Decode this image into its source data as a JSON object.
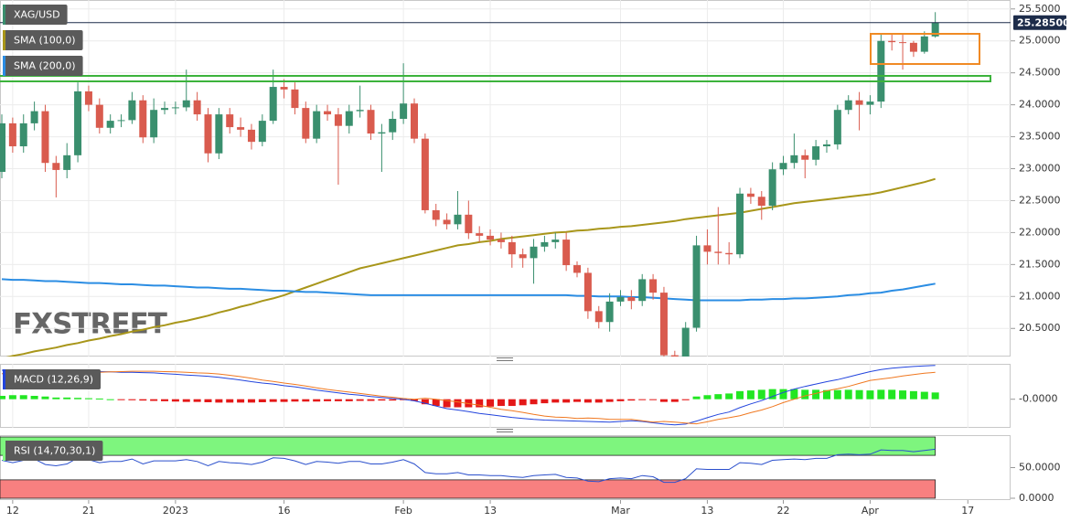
{
  "chart_data": [
    {
      "type": "candlestick",
      "title": "XAG/USD",
      "watermark": "FXSTREET",
      "categories": [
        null,
        "12",
        null,
        null,
        null,
        null,
        null,
        null,
        "21",
        null,
        null,
        null,
        null,
        null,
        null,
        null,
        "2023",
        null,
        null,
        null,
        null,
        null,
        null,
        null,
        null,
        null,
        "16",
        null,
        null,
        null,
        null,
        null,
        null,
        null,
        null,
        null,
        null,
        "Feb",
        null,
        null,
        null,
        null,
        null,
        null,
        null,
        "13",
        null,
        null,
        null,
        null,
        null,
        null,
        null,
        null,
        null,
        null,
        null,
        "Mar",
        null,
        null,
        null,
        null,
        null,
        null,
        null,
        "13",
        null,
        null,
        null,
        null,
        null,
        null,
        "22",
        null,
        null,
        null,
        null,
        null,
        null,
        null,
        "Apr",
        null,
        null,
        null,
        null,
        null,
        null,
        null,
        null,
        "17",
        null,
        null
      ],
      "open": [
        22.95,
        23.71,
        23.35,
        23.71,
        23.9,
        23.09,
        22.98,
        23.21,
        24.21,
        24.0,
        23.64,
        23.75,
        23.76,
        24.07,
        23.49,
        23.92,
        23.95,
        23.96,
        24.07,
        23.85,
        23.24,
        23.85,
        23.65,
        23.61,
        23.42,
        23.75,
        24.28,
        24.24,
        23.95,
        23.47,
        23.9,
        23.85,
        23.67,
        23.9,
        23.92,
        23.55,
        23.57,
        23.78,
        24.02,
        23.47,
        22.35,
        22.2,
        22.13,
        22.28,
        21.99,
        21.95,
        21.89,
        21.85,
        21.66,
        21.6,
        21.78,
        21.85,
        21.89,
        21.49,
        21.37,
        20.77,
        20.6,
        20.92,
        20.99,
        20.93,
        21.27,
        21.06,
        20.08,
        20.06,
        20.51,
        21.8,
        21.7,
        21.68,
        21.66,
        22.61,
        22.56,
        22.42,
        22.99,
        23.09,
        23.21,
        23.14,
        23.35,
        23.38,
        23.92,
        24.07,
        24.0,
        24.05,
        25.0,
        24.98,
        24.97,
        24.83,
        25.07,
        null,
        null,
        null,
        null,
        null
      ],
      "high": [
        23.85,
        23.8,
        23.85,
        24.05,
        24.0,
        23.2,
        23.4,
        24.35,
        24.3,
        24.1,
        23.85,
        23.85,
        24.2,
        24.15,
        24.1,
        24.05,
        24.05,
        24.55,
        24.2,
        23.95,
        23.95,
        23.95,
        23.8,
        23.7,
        23.85,
        24.55,
        24.4,
        24.35,
        24.05,
        24.0,
        24.0,
        23.95,
        24.0,
        24.3,
        24.0,
        23.7,
        23.9,
        24.65,
        24.1,
        23.55,
        22.45,
        22.3,
        22.65,
        22.5,
        22.1,
        22.05,
        22.0,
        21.95,
        21.75,
        21.9,
        21.95,
        22.0,
        22.0,
        21.55,
        21.45,
        20.85,
        21.05,
        21.1,
        21.1,
        21.35,
        21.35,
        21.15,
        20.15,
        20.6,
        21.95,
        22.05,
        22.4,
        21.85,
        22.7,
        22.7,
        22.65,
        23.1,
        23.2,
        23.55,
        23.3,
        23.45,
        23.45,
        24.0,
        24.15,
        24.2,
        24.15,
        25.1,
        25.1,
        25.1,
        25.0,
        25.15,
        25.45,
        null,
        null,
        null,
        null,
        null
      ],
      "low": [
        22.85,
        23.25,
        23.25,
        23.6,
        22.95,
        22.55,
        22.85,
        23.1,
        23.9,
        23.55,
        23.55,
        23.65,
        23.7,
        23.4,
        23.4,
        23.85,
        23.85,
        23.9,
        23.75,
        23.1,
        23.15,
        23.55,
        23.5,
        23.3,
        23.35,
        23.7,
        24.1,
        23.85,
        23.4,
        23.4,
        23.75,
        22.75,
        23.55,
        23.8,
        23.45,
        22.95,
        23.45,
        23.7,
        23.4,
        22.3,
        22.1,
        22.05,
        22.05,
        21.9,
        21.85,
        21.8,
        21.75,
        21.45,
        21.45,
        21.2,
        21.7,
        21.75,
        21.4,
        21.3,
        20.65,
        20.5,
        20.45,
        20.85,
        20.8,
        20.85,
        20.95,
        20.0,
        19.95,
        19.95,
        20.45,
        21.5,
        21.5,
        21.5,
        21.6,
        22.45,
        22.2,
        22.35,
        22.9,
        23.0,
        22.85,
        23.05,
        23.25,
        23.3,
        23.85,
        23.6,
        23.85,
        23.95,
        24.85,
        24.55,
        24.75,
        24.8,
        25.05,
        null,
        null,
        null,
        null,
        null
      ],
      "close": [
        23.71,
        23.35,
        23.71,
        23.9,
        23.09,
        22.98,
        23.21,
        24.21,
        24.0,
        23.64,
        23.75,
        23.76,
        24.07,
        23.49,
        23.92,
        23.95,
        23.96,
        24.07,
        23.85,
        23.24,
        23.85,
        23.65,
        23.61,
        23.42,
        23.75,
        24.28,
        24.24,
        23.95,
        23.47,
        23.9,
        23.85,
        23.67,
        23.9,
        23.92,
        23.55,
        23.57,
        23.78,
        24.02,
        23.47,
        22.35,
        22.2,
        22.13,
        22.28,
        21.99,
        21.95,
        21.89,
        21.85,
        21.66,
        21.6,
        21.78,
        21.85,
        21.89,
        21.49,
        21.37,
        20.77,
        20.6,
        20.92,
        20.99,
        20.93,
        21.27,
        21.06,
        20.08,
        20.06,
        20.51,
        21.8,
        21.7,
        21.68,
        21.66,
        22.61,
        22.56,
        22.42,
        22.99,
        23.09,
        23.21,
        23.14,
        23.35,
        23.38,
        23.92,
        24.07,
        24.0,
        24.05,
        25.0,
        24.98,
        24.97,
        24.83,
        25.07,
        25.285,
        null,
        null,
        null,
        null,
        null
      ],
      "up_color": "#3a8f6e",
      "down_color": "#d95b4e",
      "series": [
        {
          "name": "SMA (100,0)",
          "color": "#a8961a",
          "values": [
            20.03,
            20.07,
            20.1,
            20.14,
            20.17,
            20.2,
            20.24,
            20.27,
            20.31,
            20.34,
            20.38,
            20.41,
            20.45,
            20.48,
            20.52,
            20.55,
            20.59,
            20.62,
            20.66,
            20.7,
            20.75,
            20.79,
            20.84,
            20.88,
            20.93,
            20.97,
            21.02,
            21.08,
            21.14,
            21.2,
            21.26,
            21.32,
            21.38,
            21.44,
            21.48,
            21.52,
            21.56,
            21.6,
            21.64,
            21.68,
            21.72,
            21.76,
            21.8,
            21.82,
            21.85,
            21.87,
            21.9,
            21.92,
            21.94,
            21.96,
            21.98,
            22.0,
            22.01,
            22.03,
            22.04,
            22.06,
            22.07,
            22.09,
            22.1,
            22.12,
            22.14,
            22.16,
            22.18,
            22.21,
            22.23,
            22.25,
            22.27,
            22.29,
            22.31,
            22.34,
            22.37,
            22.4,
            22.43,
            22.46,
            22.48,
            22.5,
            22.52,
            22.54,
            22.56,
            22.58,
            22.6,
            22.63,
            22.67,
            22.71,
            22.75,
            22.79,
            22.84,
            null,
            null,
            null,
            null,
            null
          ]
        },
        {
          "name": "SMA (200,0)",
          "color": "#2b8de3",
          "values": [
            21.27,
            21.26,
            21.26,
            21.25,
            21.24,
            21.24,
            21.23,
            21.22,
            21.21,
            21.21,
            21.2,
            21.19,
            21.19,
            21.18,
            21.17,
            21.17,
            21.16,
            21.15,
            21.14,
            21.14,
            21.13,
            21.12,
            21.12,
            21.11,
            21.1,
            21.09,
            21.09,
            21.08,
            21.07,
            21.07,
            21.06,
            21.05,
            21.04,
            21.03,
            21.02,
            21.02,
            21.02,
            21.02,
            21.02,
            21.02,
            21.02,
            21.02,
            21.02,
            21.02,
            21.02,
            21.02,
            21.02,
            21.02,
            21.02,
            21.02,
            21.02,
            21.02,
            21.02,
            21.01,
            21.01,
            21.0,
            21.0,
            21.0,
            20.99,
            20.99,
            20.98,
            20.97,
            20.96,
            20.95,
            20.94,
            20.94,
            20.94,
            20.94,
            20.94,
            20.95,
            20.95,
            20.96,
            20.96,
            20.97,
            20.97,
            20.98,
            20.99,
            21.0,
            21.02,
            21.03,
            21.05,
            21.06,
            21.09,
            21.11,
            21.14,
            21.17,
            21.2,
            null,
            null,
            null,
            null,
            null
          ]
        }
      ],
      "ylim": [
        20.06,
        25.64
      ],
      "yticks": [
        {
          "value": 20.5,
          "label": "20.5000"
        },
        {
          "value": 21,
          "label": "21.0000"
        },
        {
          "value": 21.5,
          "label": "21.5000"
        },
        {
          "value": 22,
          "label": "22.0000"
        },
        {
          "value": 22.5,
          "label": "22.5000"
        },
        {
          "value": 23,
          "label": "23.0000"
        },
        {
          "value": 23.5,
          "label": "23.5000"
        },
        {
          "value": 24,
          "label": "24.0000"
        },
        {
          "value": 24.5,
          "label": "24.5000"
        },
        {
          "value": 25,
          "label": "25.0000"
        },
        {
          "value": 25.5,
          "label": "25.5000"
        }
      ],
      "last_price": {
        "value": 25.285,
        "label": "25.28500"
      },
      "grid": true
    },
    {
      "type": "macd",
      "title": "MACD (12,26,9)",
      "histogram": [
        0.1,
        0.12,
        0.12,
        0.1,
        0.08,
        0.05,
        0.05,
        0.04,
        0.03,
        0.02,
        0,
        -0.02,
        -0.03,
        -0.04,
        -0.05,
        -0.06,
        -0.07,
        -0.08,
        -0.08,
        -0.09,
        -0.1,
        -0.1,
        -0.1,
        -0.1,
        -0.09,
        -0.08,
        -0.08,
        -0.07,
        -0.07,
        -0.07,
        -0.06,
        -0.06,
        -0.06,
        -0.05,
        -0.05,
        -0.04,
        -0.04,
        -0.02,
        -0.05,
        -0.15,
        -0.2,
        -0.24,
        -0.24,
        -0.24,
        -0.24,
        -0.22,
        -0.2,
        -0.2,
        -0.18,
        -0.15,
        -0.12,
        -0.1,
        -0.1,
        -0.08,
        -0.1,
        -0.1,
        -0.08,
        -0.06,
        -0.04,
        -0.02,
        -0.02,
        -0.08,
        -0.08,
        -0.03,
        0.08,
        0.12,
        0.15,
        0.17,
        0.24,
        0.26,
        0.28,
        0.3,
        0.3,
        0.3,
        0.28,
        0.28,
        0.27,
        0.27,
        0.28,
        0.27,
        0.26,
        0.28,
        0.28,
        0.26,
        0.24,
        0.22,
        0.2,
        null,
        null,
        null,
        null,
        null
      ],
      "up_color": "#22e622",
      "down_color": "#e41818",
      "series": [
        {
          "color": "#2244dd",
          "values": [
            0.86,
            0.87,
            0.86,
            0.86,
            0.85,
            0.84,
            0.84,
            0.84,
            0.83,
            0.82,
            0.81,
            0.8,
            0.8,
            0.79,
            0.78,
            0.76,
            0.74,
            0.72,
            0.7,
            0.68,
            0.65,
            0.61,
            0.57,
            0.52,
            0.48,
            0.45,
            0.4,
            0.37,
            0.32,
            0.27,
            0.23,
            0.19,
            0.15,
            0.12,
            0.08,
            0.05,
            0.02,
            0.0,
            -0.05,
            -0.12,
            -0.2,
            -0.28,
            -0.32,
            -0.37,
            -0.42,
            -0.46,
            -0.5,
            -0.54,
            -0.57,
            -0.6,
            -0.62,
            -0.63,
            -0.64,
            -0.65,
            -0.66,
            -0.67,
            -0.68,
            -0.66,
            -0.64,
            -0.66,
            -0.7,
            -0.74,
            -0.76,
            -0.74,
            -0.65,
            -0.55,
            -0.45,
            -0.38,
            -0.25,
            -0.14,
            -0.04,
            0.08,
            0.2,
            0.3,
            0.38,
            0.45,
            0.52,
            0.58,
            0.66,
            0.74,
            0.82,
            0.88,
            0.92,
            0.95,
            0.97,
            0.99,
            1.0,
            null,
            null,
            null,
            null,
            null
          ]
        },
        {
          "color": "#f07820",
          "values": [
            0.76,
            0.75,
            0.74,
            0.76,
            0.77,
            0.79,
            0.79,
            0.8,
            0.8,
            0.8,
            0.81,
            0.82,
            0.83,
            0.83,
            0.83,
            0.82,
            0.81,
            0.8,
            0.78,
            0.77,
            0.75,
            0.71,
            0.67,
            0.62,
            0.57,
            0.53,
            0.48,
            0.44,
            0.39,
            0.34,
            0.29,
            0.25,
            0.21,
            0.17,
            0.13,
            0.09,
            0.06,
            0.02,
            0.0,
            0.03,
            0.0,
            -0.04,
            -0.08,
            -0.13,
            -0.18,
            -0.24,
            -0.3,
            -0.34,
            -0.39,
            -0.45,
            -0.5,
            -0.53,
            -0.54,
            -0.57,
            -0.56,
            -0.57,
            -0.6,
            -0.6,
            -0.6,
            -0.64,
            -0.68,
            -0.66,
            -0.68,
            -0.71,
            -0.73,
            -0.67,
            -0.6,
            -0.55,
            -0.49,
            -0.4,
            -0.32,
            -0.22,
            -0.1,
            0.0,
            0.1,
            0.17,
            0.25,
            0.31,
            0.38,
            0.47,
            0.56,
            0.6,
            0.64,
            0.69,
            0.73,
            0.77,
            0.8,
            null,
            null,
            null,
            null,
            null
          ]
        }
      ],
      "ylim": [
        -0.85,
        1.05
      ],
      "yticks": [
        {
          "value": 0,
          "label": "-0.0000"
        }
      ]
    },
    {
      "type": "line",
      "title": "RSI (14,70,30,1)",
      "series": [
        {
          "color": "#2a4fcc",
          "values": [
            62,
            58,
            62,
            64,
            55,
            53,
            56,
            66,
            63,
            58,
            60,
            60,
            64,
            56,
            61,
            61,
            61,
            63,
            60,
            53,
            60,
            58,
            57,
            55,
            59,
            66,
            65,
            61,
            55,
            60,
            59,
            57,
            60,
            60,
            56,
            56,
            59,
            63,
            56,
            42,
            40,
            40,
            42,
            38,
            38,
            37,
            37,
            35,
            34,
            37,
            38,
            39,
            34,
            33,
            28,
            27,
            32,
            33,
            32,
            37,
            35,
            26,
            26,
            32,
            48,
            47,
            47,
            47,
            58,
            57,
            55,
            62,
            63,
            64,
            63,
            65,
            65,
            71,
            72,
            71,
            72,
            79,
            78,
            78,
            76,
            78,
            80,
            null,
            null,
            null,
            null,
            null
          ]
        }
      ],
      "overbought": 70,
      "oversold": 30,
      "overbought_color": "#7ef57e",
      "oversold_color": "#f88080",
      "ylim": [
        0,
        100
      ],
      "yticks": [
        {
          "value": 50,
          "label": "50.0000"
        },
        {
          "value": 0,
          "label": "0.0000"
        }
      ]
    }
  ]
}
